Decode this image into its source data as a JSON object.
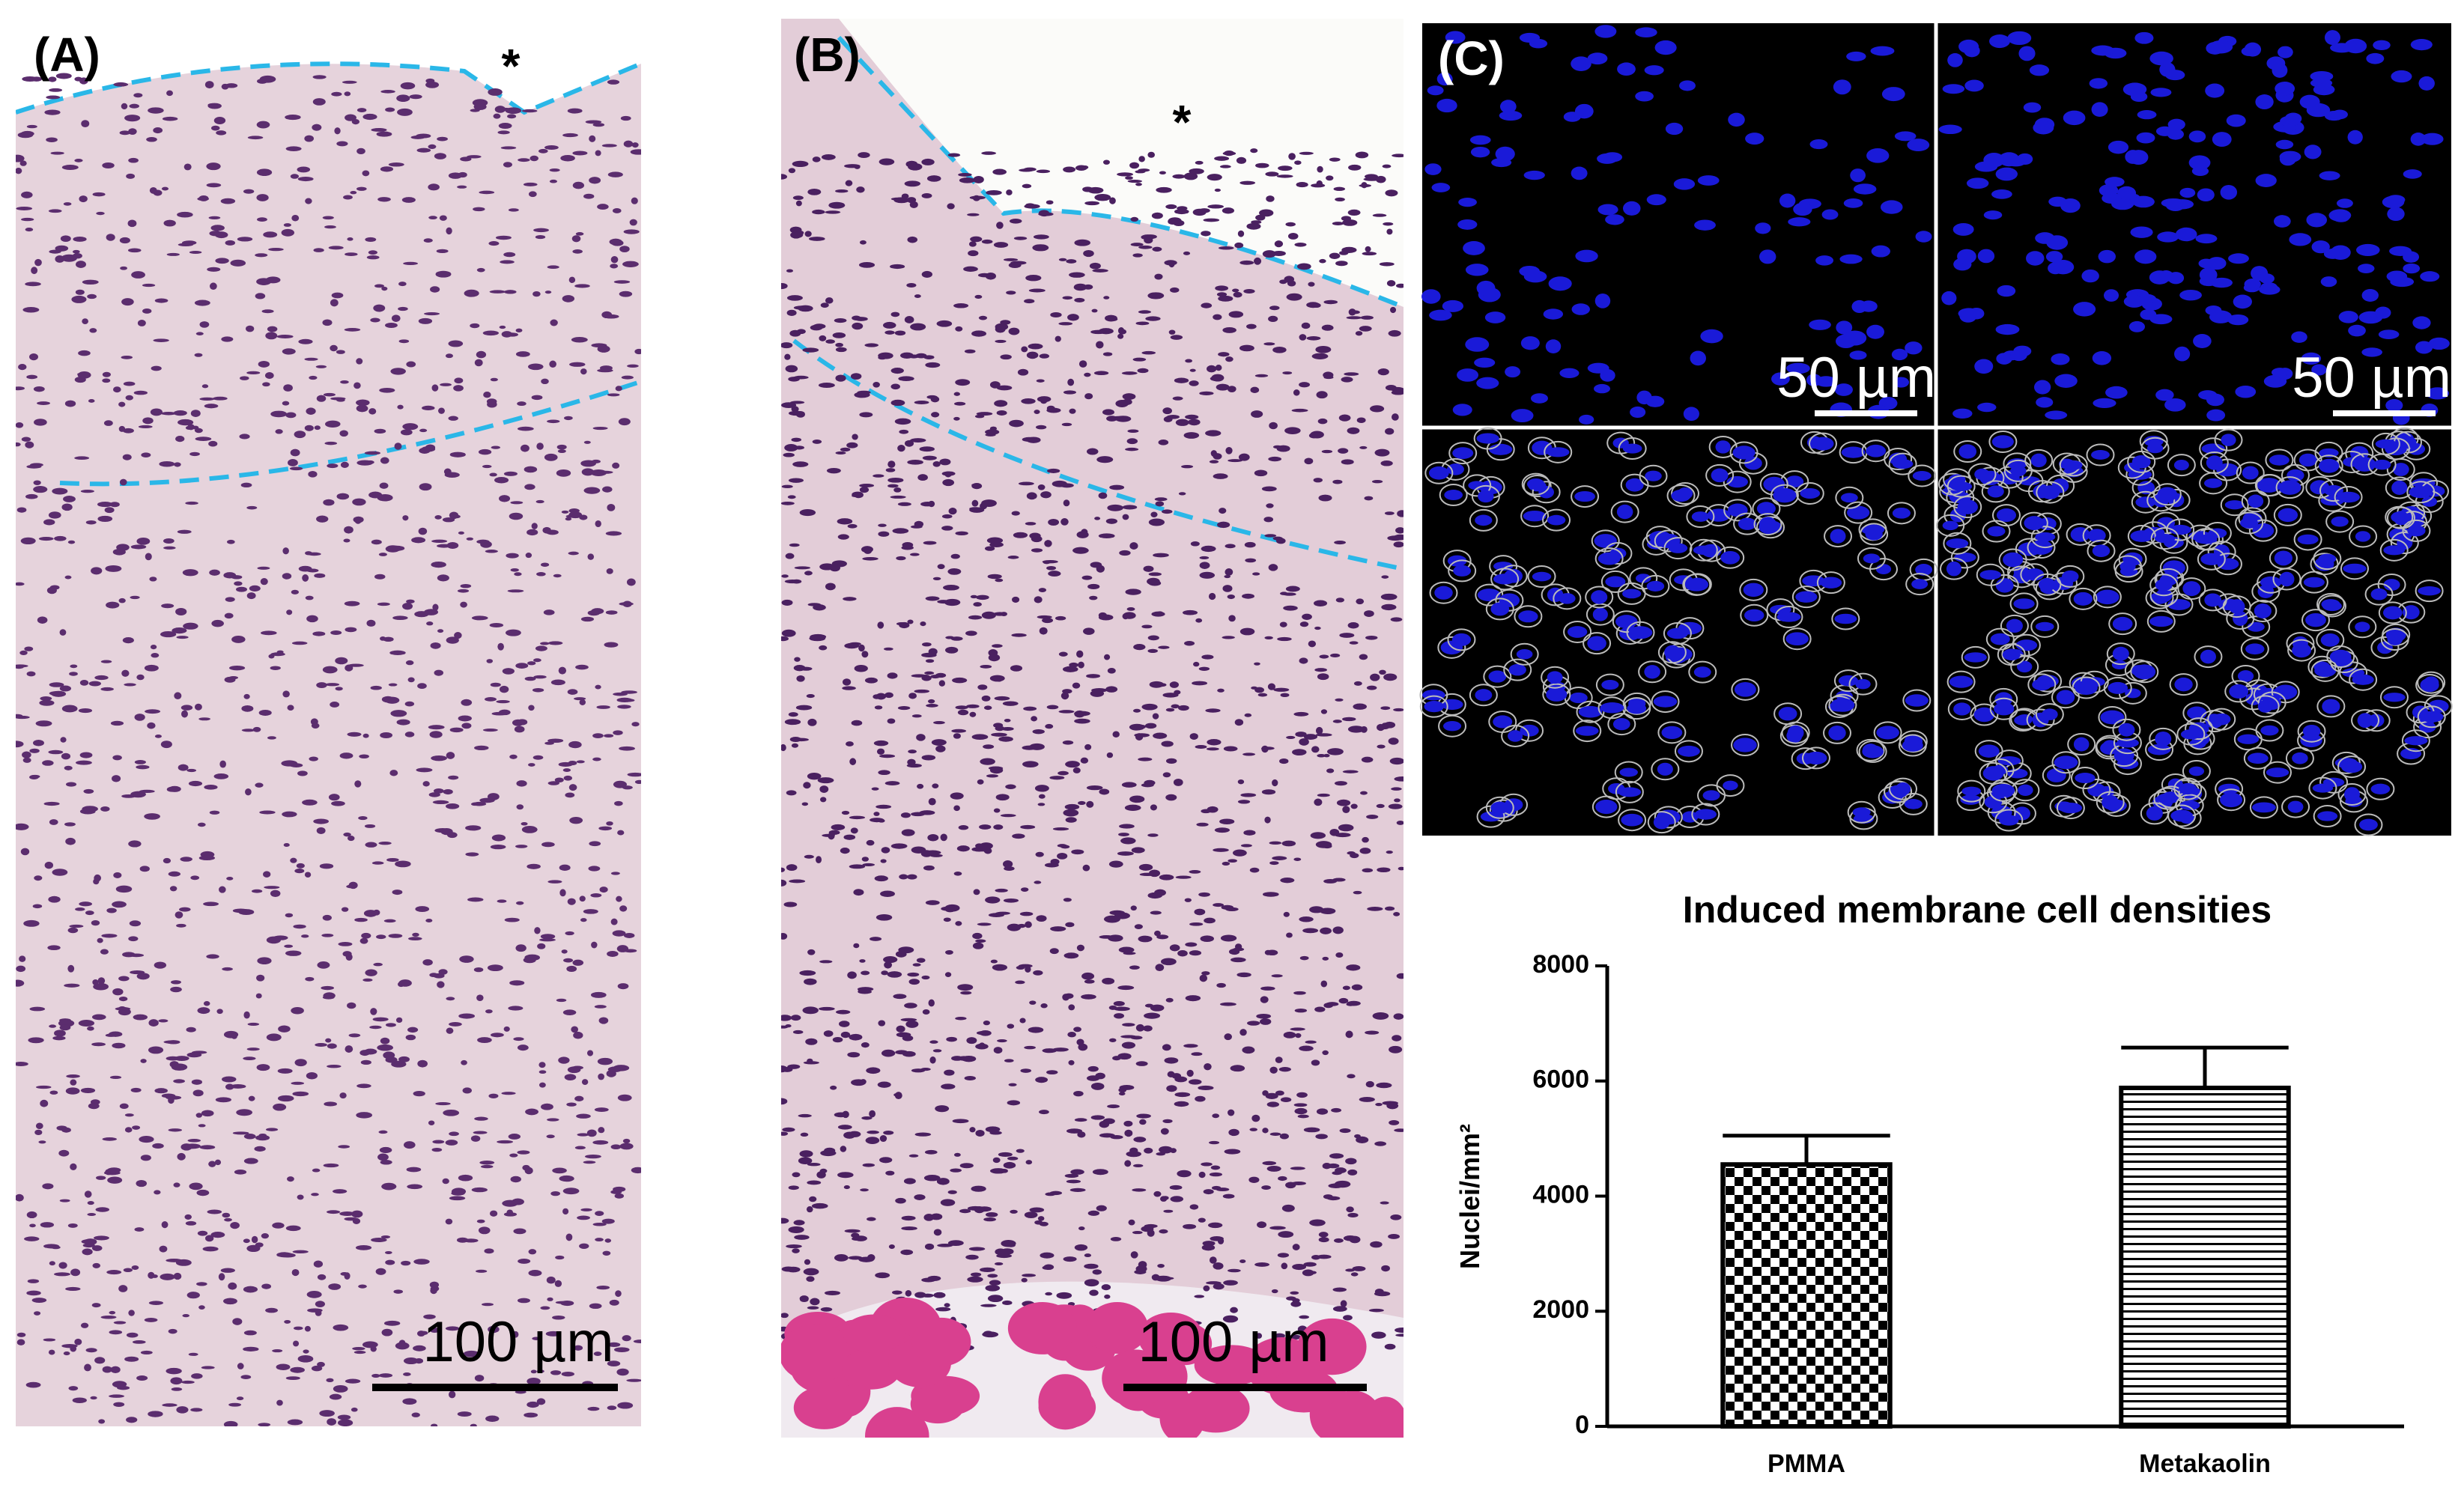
{
  "panels": {
    "a": {
      "label": "(A)",
      "marker": "*",
      "scale": "100 µm"
    },
    "b": {
      "label": "(B)",
      "marker": "*",
      "scale": "100 µm"
    },
    "c": {
      "label": "(C)",
      "scale_left": "50 µm",
      "scale_right": "50 µm"
    }
  },
  "chart_data": {
    "type": "bar",
    "title": "Induced membrane cell densities",
    "y_label": "Nuclei/mm²",
    "categories": [
      "PMMA",
      "Metakaolin"
    ],
    "values": [
      4550,
      5880
    ],
    "errors": [
      500,
      700
    ],
    "fill_patterns": [
      "checkerboard",
      "horizontal-stripes"
    ],
    "color": "#000000",
    "ylim": [
      0,
      8000
    ],
    "yticks": [
      0,
      2000,
      4000,
      6000,
      8000
    ]
  }
}
